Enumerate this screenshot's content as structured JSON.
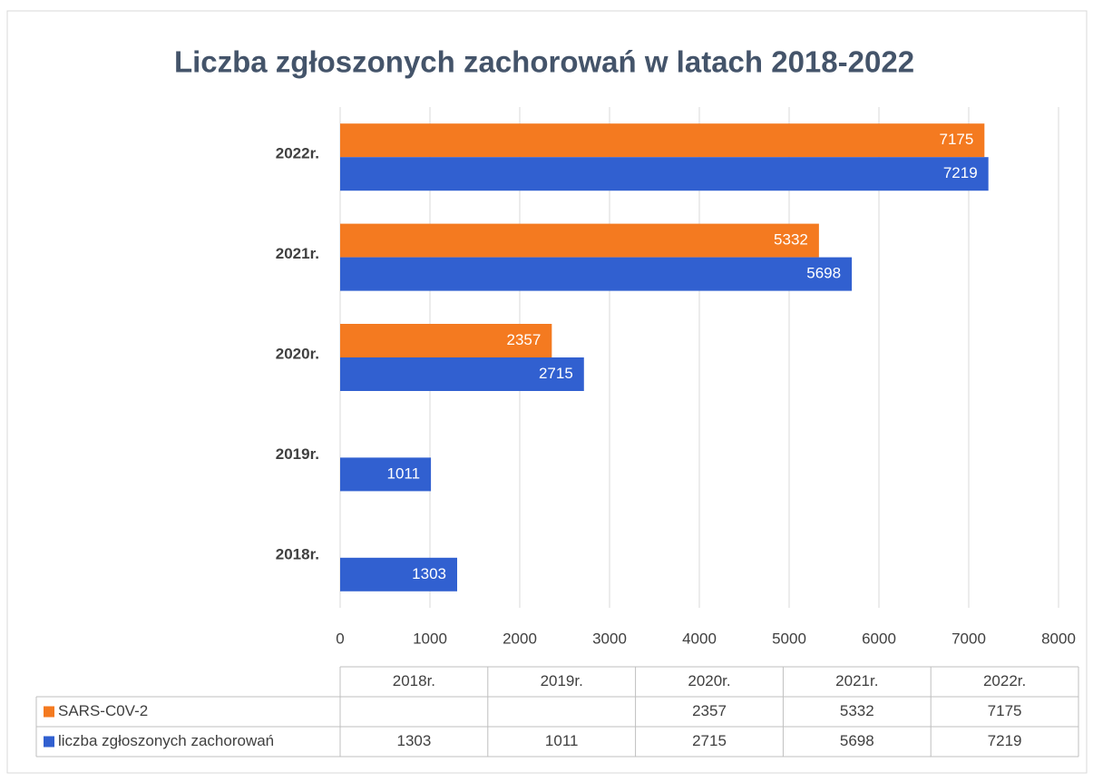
{
  "chart_data": {
    "type": "bar",
    "orientation": "horizontal",
    "title": "Liczba zgłoszonych zachorowań w latach 2018-2022",
    "categories": [
      "2018r.",
      "2019r.",
      "2020r.",
      "2021r.",
      "2022r."
    ],
    "series": [
      {
        "name": "SARS-C0V-2",
        "color": "#f47a20",
        "values": [
          null,
          null,
          2357,
          5332,
          7175
        ]
      },
      {
        "name": "liczba zgłoszonych zachorowań",
        "color": "#3160d0",
        "values": [
          1303,
          1011,
          2715,
          5698,
          7219
        ]
      }
    ],
    "xlim": [
      0,
      8000
    ],
    "xticks": [
      0,
      1000,
      2000,
      3000,
      4000,
      5000,
      6000,
      7000,
      8000
    ],
    "grid": true,
    "data_table": true
  }
}
